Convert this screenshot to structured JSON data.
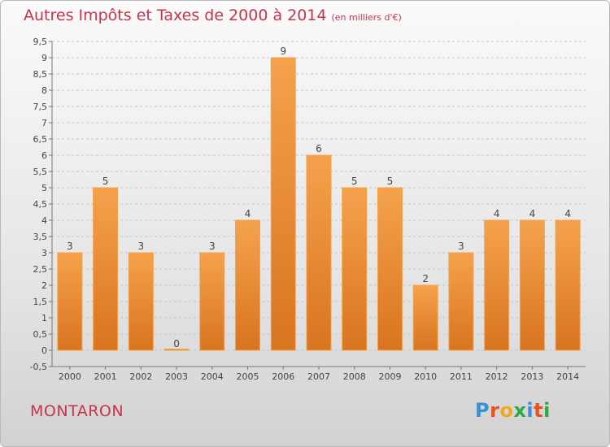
{
  "header": {
    "title": "Autres Impôts et Taxes de 2000 à 2014",
    "unit": "(en milliers d'€)"
  },
  "footer": {
    "place": "MONTARON",
    "brand_letters": [
      "P",
      "r",
      "o",
      "x",
      "i",
      "t",
      "i"
    ],
    "brand_colors": [
      "#3a8fd6",
      "#e8501e",
      "#f0a81c",
      "#2ba84a",
      "#3a8fd6",
      "#e8501e",
      "#2ba84a"
    ]
  },
  "colors": {
    "bar_light": "#f5a24c",
    "bar_dark": "#d9741f",
    "title": "#c8344a",
    "grid": "#c6c6c6"
  },
  "chart_data": {
    "type": "bar",
    "categories": [
      "2000",
      "2001",
      "2002",
      "2003",
      "2004",
      "2005",
      "2006",
      "2007",
      "2008",
      "2009",
      "2010",
      "2011",
      "2012",
      "2013",
      "2014"
    ],
    "values": [
      3,
      5,
      3,
      0,
      3,
      4,
      9,
      6,
      5,
      5,
      2,
      3,
      4,
      4,
      4
    ],
    "data_labels": [
      "3",
      "5",
      "3",
      "0",
      "3",
      "4",
      "9",
      "6",
      "5",
      "5",
      "2",
      "3",
      "4",
      "4",
      "4"
    ],
    "ylim": [
      -0.5,
      9.5
    ],
    "yticks": [
      "-0,5",
      "0",
      "0,5",
      "1",
      "1,5",
      "2",
      "2,5",
      "3",
      "3,5",
      "4",
      "4,5",
      "5",
      "5,5",
      "6",
      "6,5",
      "7",
      "7,5",
      "8",
      "8,5",
      "9",
      "9,5"
    ],
    "ytick_values": [
      -0.5,
      0,
      0.5,
      1,
      1.5,
      2,
      2.5,
      3,
      3.5,
      4,
      4.5,
      5,
      5.5,
      6,
      6.5,
      7,
      7.5,
      8,
      8.5,
      9,
      9.5
    ],
    "grid": true,
    "legend": "none"
  }
}
